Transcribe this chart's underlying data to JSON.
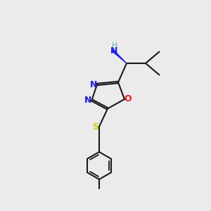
{
  "bg_color": "#ebebeb",
  "bond_color": "#1a1a1a",
  "N_color": "#1919ff",
  "O_color": "#ff1919",
  "S_color": "#cccc00",
  "H_color": "#5fafaf",
  "line_width": 1.5,
  "dbl_sep": 0.035,
  "fig_xlim": [
    0,
    10
  ],
  "fig_ylim": [
    0,
    10
  ]
}
